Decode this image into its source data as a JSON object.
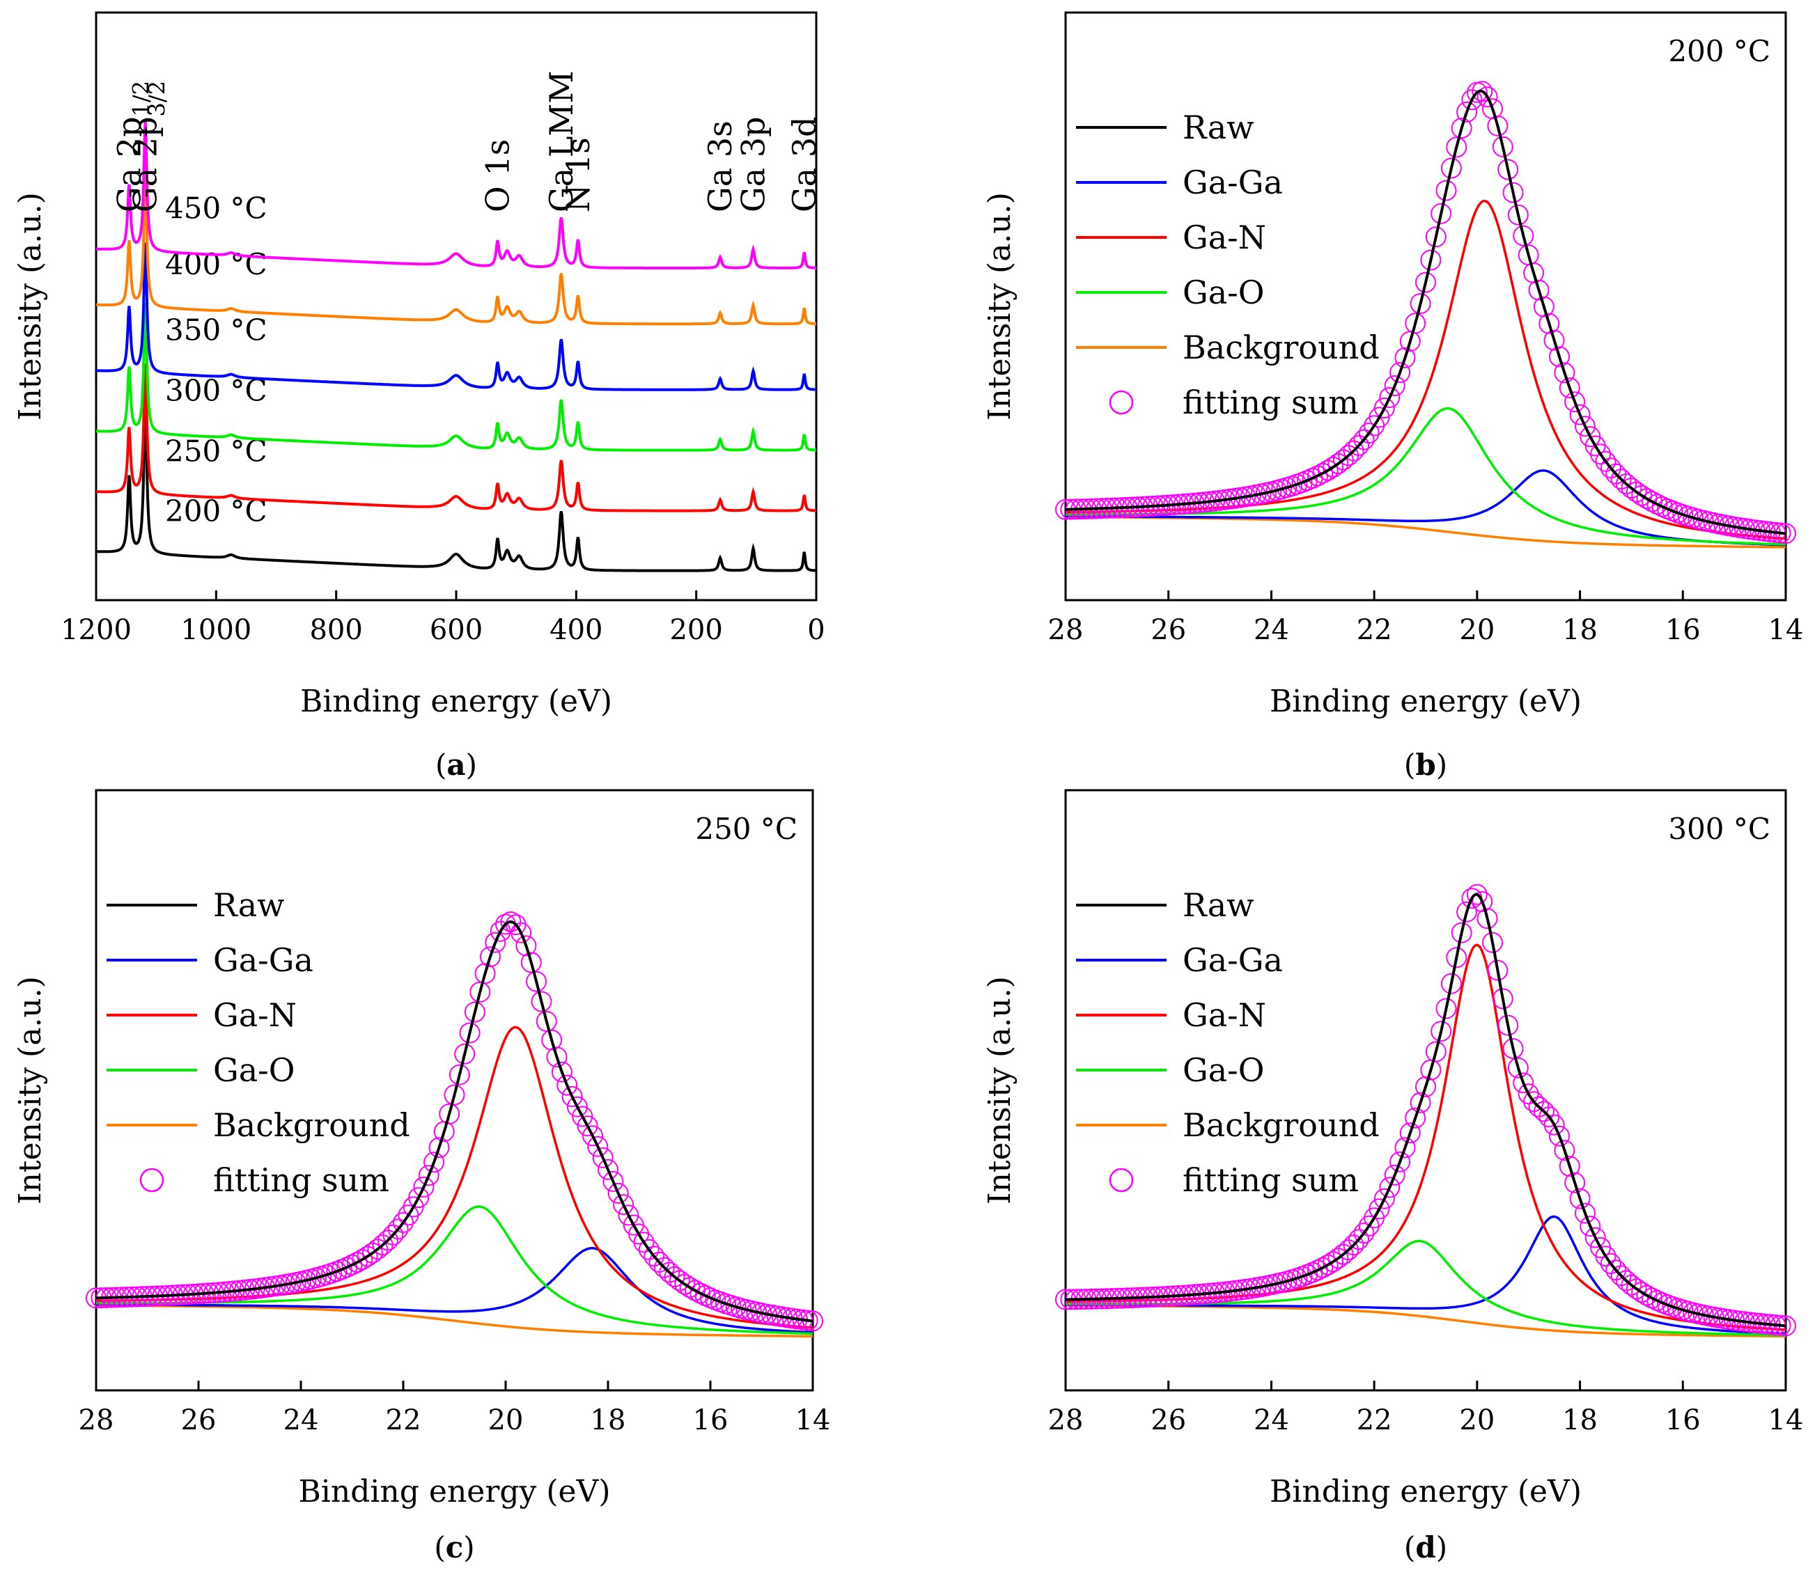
{
  "chart_data": [
    {
      "id": "a",
      "type": "line",
      "caption": "a",
      "xlabel": "Binding energy (eV)",
      "ylabel": "Intensity (a.u.)",
      "xlim": [
        1200,
        0
      ],
      "ylim": [
        0,
        100
      ],
      "x_ticks": [
        1200,
        1000,
        800,
        600,
        400,
        200,
        0
      ],
      "peak_labels": [
        {
          "x": 1145,
          "main": "Ga 2p",
          "sub": "1/2"
        },
        {
          "x": 1118,
          "main": "Ga 2p",
          "sub": "3/2"
        },
        {
          "x": 531,
          "main": "O 1s",
          "sub": ""
        },
        {
          "x": 425,
          "main": "Ga LMM",
          "sub": ""
        },
        {
          "x": 397,
          "main": "N 1s",
          "sub": ""
        },
        {
          "x": 160,
          "main": "Ga 3s",
          "sub": ""
        },
        {
          "x": 105,
          "main": "Ga 3p",
          "sub": ""
        },
        {
          "x": 20,
          "main": "Ga 3d",
          "sub": ""
        }
      ],
      "peaks": [
        {
          "x": 1145,
          "height": 13,
          "width": 3
        },
        {
          "x": 1118,
          "height": 26,
          "width": 3
        },
        {
          "x": 975,
          "height": 0.6,
          "width": 8
        },
        {
          "x": 600,
          "height": 2.5,
          "width": 14
        },
        {
          "x": 531,
          "height": 5,
          "width": 3
        },
        {
          "x": 515,
          "height": 3,
          "width": 6
        },
        {
          "x": 495,
          "height": 2.2,
          "width": 7
        },
        {
          "x": 425,
          "height": 10,
          "width": 4
        },
        {
          "x": 397,
          "height": 5.5,
          "width": 3
        },
        {
          "x": 160,
          "height": 2.2,
          "width": 3
        },
        {
          "x": 105,
          "height": 3.8,
          "width": 3
        },
        {
          "x": 20,
          "height": 3.2,
          "width": 2
        }
      ],
      "series": [
        {
          "name": "200 °C",
          "color": "#000000",
          "offset": 5,
          "scale": 1.0
        },
        {
          "name": "250 °C",
          "color": "#ff0000",
          "offset": 15.2,
          "scale": 0.85
        },
        {
          "name": "300 °C",
          "color": "#00ee00",
          "offset": 25.5,
          "scale": 0.85
        },
        {
          "name": "350 °C",
          "color": "#0000ff",
          "offset": 35.8,
          "scale": 0.85
        },
        {
          "name": "400 °C",
          "color": "#ff8000",
          "offset": 47,
          "scale": 0.85
        },
        {
          "name": "450 °C",
          "color": "#ff00ff",
          "offset": 56.5,
          "scale": 0.85
        }
      ]
    },
    {
      "id": "b",
      "type": "line",
      "caption": "b",
      "temperature": "200 °C",
      "xlabel": "Binding energy (eV)",
      "ylabel": "Intensity (a.u.)",
      "xlim": [
        28,
        14
      ],
      "ylim": [
        0,
        100
      ],
      "x_ticks": [
        28,
        26,
        24,
        22,
        20,
        18,
        16,
        14
      ],
      "background": {
        "left": 13,
        "right": 9,
        "center": 20.5,
        "width": 1.1
      },
      "components": [
        {
          "name": "Ga-Ga",
          "color": "#0000ff",
          "center": 18.7,
          "height": 12,
          "width": 0.85
        },
        {
          "name": "Ga-N",
          "color": "#ff0000",
          "center": 19.85,
          "height": 57,
          "width": 0.95
        },
        {
          "name": "Ga-O",
          "color": "#00ee00",
          "center": 20.55,
          "height": 21,
          "width": 1.0
        }
      ],
      "legend": [
        {
          "label": "Raw",
          "kind": "line",
          "color": "#000000"
        },
        {
          "label": "Ga-Ga",
          "kind": "line",
          "color": "#0000ff"
        },
        {
          "label": "Ga-N",
          "kind": "line",
          "color": "#ff0000"
        },
        {
          "label": "Ga-O",
          "kind": "line",
          "color": "#00ee00"
        },
        {
          "label": "Background",
          "kind": "line",
          "color": "#ff8000"
        },
        {
          "label": "fitting sum",
          "kind": "circle",
          "color": "#ff00ff"
        }
      ]
    },
    {
      "id": "c",
      "type": "line",
      "caption": "c",
      "temperature": "250 °C",
      "xlabel": "Binding energy (eV)",
      "ylabel": "Intensity (a.u.)",
      "xlim": [
        28,
        14
      ],
      "ylim": [
        0,
        100
      ],
      "x_ticks": [
        28,
        26,
        24,
        22,
        20,
        18,
        16,
        14
      ],
      "background": {
        "left": 13,
        "right": 9,
        "center": 21.0,
        "width": 1.1
      },
      "components": [
        {
          "name": "Ga-Ga",
          "color": "#0000ff",
          "center": 18.3,
          "height": 14,
          "width": 0.95
        },
        {
          "name": "Ga-N",
          "color": "#ff0000",
          "center": 19.8,
          "height": 50,
          "width": 1.0
        },
        {
          "name": "Ga-O",
          "color": "#00ee00",
          "center": 20.5,
          "height": 19.5,
          "width": 1.0
        }
      ],
      "legend": [
        {
          "label": "Raw",
          "kind": "line",
          "color": "#000000"
        },
        {
          "label": "Ga-Ga",
          "kind": "line",
          "color": "#0000ff"
        },
        {
          "label": "Ga-N",
          "kind": "line",
          "color": "#ff0000"
        },
        {
          "label": "Ga-O",
          "kind": "line",
          "color": "#00ee00"
        },
        {
          "label": "Background",
          "kind": "line",
          "color": "#ff8000"
        },
        {
          "label": "fitting sum",
          "kind": "circle",
          "color": "#ff00ff"
        }
      ]
    },
    {
      "id": "d",
      "type": "line",
      "caption": "d",
      "temperature": "300 °C",
      "xlabel": "Binding energy (eV)",
      "ylabel": "Intensity (a.u.)",
      "xlim": [
        28,
        14
      ],
      "ylim": [
        0,
        100
      ],
      "x_ticks": [
        28,
        26,
        24,
        22,
        20,
        18,
        16,
        14
      ],
      "background": {
        "left": 13,
        "right": 9,
        "center": 20.3,
        "width": 1.0
      },
      "components": [
        {
          "name": "Ga-Ga",
          "color": "#0000ff",
          "center": 18.5,
          "height": 19,
          "width": 0.7
        },
        {
          "name": "Ga-N",
          "color": "#ff0000",
          "center": 20.0,
          "height": 63,
          "width": 0.8
        },
        {
          "name": "Ga-O",
          "color": "#00ee00",
          "center": 21.1,
          "height": 12.5,
          "width": 0.9
        }
      ],
      "legend": [
        {
          "label": "Raw",
          "kind": "line",
          "color": "#000000"
        },
        {
          "label": "Ga-Ga",
          "kind": "line",
          "color": "#0000ff"
        },
        {
          "label": "Ga-N",
          "kind": "line",
          "color": "#ff0000"
        },
        {
          "label": "Ga-O",
          "kind": "line",
          "color": "#00ee00"
        },
        {
          "label": "Background",
          "kind": "line",
          "color": "#ff8000"
        },
        {
          "label": "fitting sum",
          "kind": "circle",
          "color": "#ff00ff"
        }
      ]
    }
  ]
}
